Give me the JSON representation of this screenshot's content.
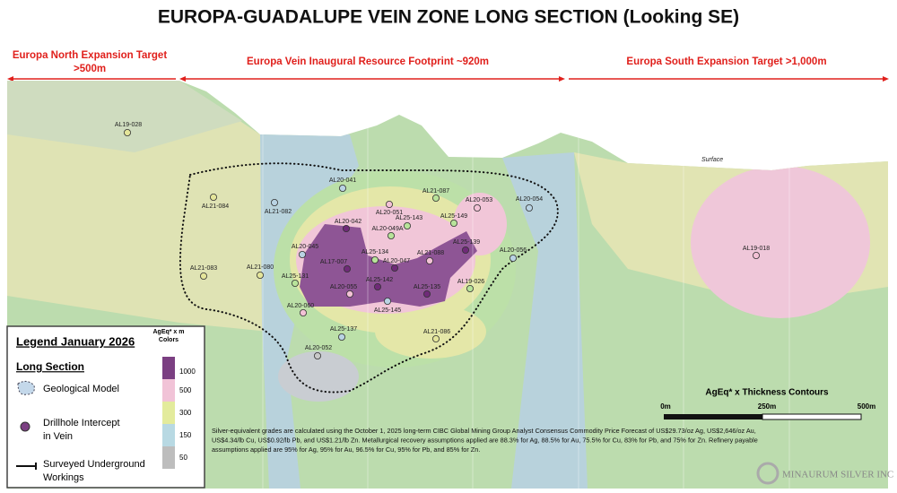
{
  "header": {
    "title": "EUROPA-GUADALUPE VEIN ZONE LONG SECTION (Looking SE)"
  },
  "targets": {
    "north": {
      "label": "Europa North Expansion Target",
      "distance": ">500m"
    },
    "inaugural": {
      "label": "Europa Vein Inaugural Resource Footprint  ~920m"
    },
    "south": {
      "label": "Europa South Expansion Target >1,000m"
    }
  },
  "surface_label": "Surface",
  "drillholes": [
    {
      "label": "AL19-028",
      "color": "#e4e59a"
    },
    {
      "label": "AL20-041",
      "color": "#b9d3e3"
    },
    {
      "label": "AL21-087",
      "color": "#b8e39a"
    },
    {
      "label": "AL20-053",
      "color": "#f3c2d6"
    },
    {
      "label": "AL20-054",
      "color": "#b9d3e3"
    },
    {
      "label": "AL21-084",
      "color": "#e4e59a"
    },
    {
      "label": "AL21-082",
      "color": "#b9d3e3"
    },
    {
      "label": "AL20-051",
      "color": "#f3c2d6"
    },
    {
      "label": "AL25-143",
      "color": "#b8e39a"
    },
    {
      "label": "AL25-149",
      "color": "#b8e39a"
    },
    {
      "label": "AL20-042",
      "color": "#6f2a78"
    },
    {
      "label": "AL20-049A",
      "color": "#b8e39a"
    },
    {
      "label": "AL25-139",
      "color": "#6f2a78"
    },
    {
      "label": "AL20-045",
      "color": "#b9d3e3"
    },
    {
      "label": "AL25-134",
      "color": "#b8e39a"
    },
    {
      "label": "AL21-088",
      "color": "#f3c2d6"
    },
    {
      "label": "AL20-056",
      "color": "#b9d3e3"
    },
    {
      "label": "AL17-007",
      "color": "#6f2a78"
    },
    {
      "label": "AL20-047",
      "color": "#6f2a78"
    },
    {
      "label": "AL21-083",
      "color": "#e4e59a"
    },
    {
      "label": "AL21-080",
      "color": "#e4e59a"
    },
    {
      "label": "AL25-131",
      "color": "#b8e39a"
    },
    {
      "label": "AL19-026",
      "color": "#b8e39a"
    },
    {
      "label": "AL25-142",
      "color": "#6f2a78"
    },
    {
      "label": "AL20-055",
      "color": "#f3c2d6"
    },
    {
      "label": "AL25-135",
      "color": "#6f2a78"
    },
    {
      "label": "AL25-145",
      "color": "#b9d3e3"
    },
    {
      "label": "AL20-060",
      "color": "#f3c2d6"
    },
    {
      "label": "AL25-137",
      "color": "#b9d3e3"
    },
    {
      "label": "AL21-086",
      "color": "#e4e59a"
    },
    {
      "label": "AL20-052",
      "color": "#c8c8c8"
    },
    {
      "label": "AL19-018",
      "color": "#f3c2d6"
    }
  ],
  "legend": {
    "title": "Legend January 2026",
    "section_heading": "Long Section",
    "items": [
      {
        "lines": [
          "Geological Model"
        ]
      },
      {
        "lines": [
          "Drillhole Intercept",
          "in Vein"
        ]
      },
      {
        "lines": [
          "Surveyed Underground",
          "Workings"
        ]
      }
    ],
    "scale_title": [
      "AgEq* x m",
      "Colors"
    ],
    "scale": [
      {
        "value": 1000,
        "color": "#7b3f82"
      },
      {
        "value": 500,
        "color": "#f1c3d7"
      },
      {
        "value": 300,
        "color": "#e3eb9c"
      },
      {
        "value": 150,
        "color": "#b8d9e3"
      },
      {
        "value": 50,
        "color": "#bdbdbd"
      }
    ]
  },
  "scale_bar": {
    "title": "AgEq* x Thickness Contours",
    "labels": [
      "0m",
      "250m",
      "500m"
    ]
  },
  "footnote": [
    "Silver-equivalent grades are calculated using the October 1, 2025 long-term CIBC Global Mining Group Analyst Consensus Commodity Price Forecast of US$29.73/oz Ag, US$2,646/oz Au,",
    "US$4.34/lb Cu, US$0.92/lb Pb, and US$1.21/lb Zn. Metallurgical recovery assumptions applied are 88.3% for Ag, 88.5% for Au, 75.5% for Cu, 83% for Pb, and 75% for Zn. Refinery payable",
    "assumptions applied are 95% for Ag, 95% for Au, 96.5% for Cu, 95% for Pb, and 85% for Zn."
  ],
  "logo": "MINAURUM SILVER INC"
}
